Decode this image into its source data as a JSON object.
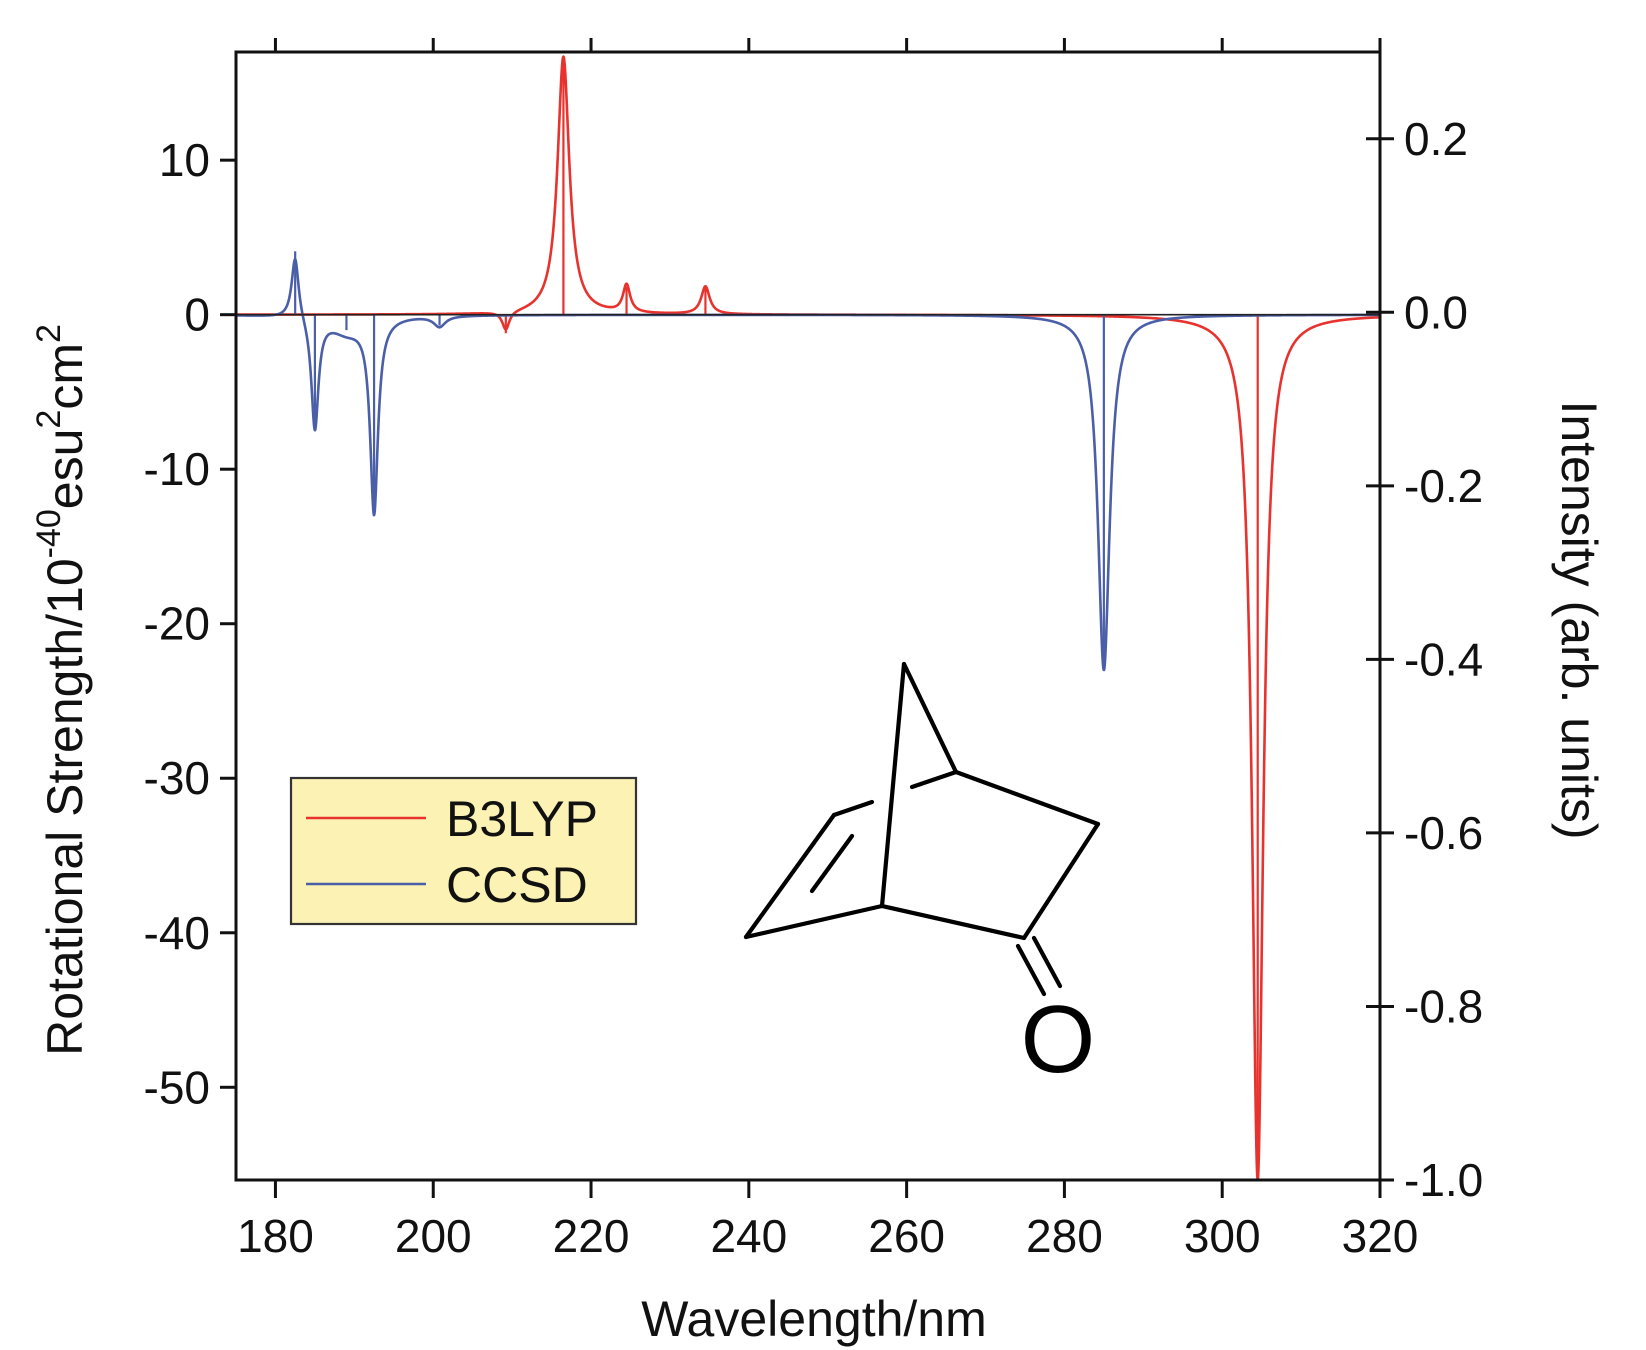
{
  "chart_data": {
    "type": "line",
    "title": "",
    "xlabel": "Wavelength/nm",
    "ylabel_left": {
      "main": "Rotational Strength/10",
      "exp1": "-40",
      "mid": "esu",
      "exp2": "2",
      "unit": "cm",
      "exp3": "2"
    },
    "ylabel_right": "Intensity (arb. units)",
    "xlim": [
      175,
      320
    ],
    "ylim_left": [
      -56,
      17
    ],
    "ylim_right": [
      -1.0,
      0.3
    ],
    "x_ticks": [
      180,
      200,
      220,
      240,
      260,
      280,
      300,
      320
    ],
    "x_tick_labels": [
      "180",
      "200",
      "220",
      "240",
      "260",
      "280",
      "300",
      "320"
    ],
    "y_left_ticks": [
      10,
      0,
      -10,
      -20,
      -30,
      -40,
      -50
    ],
    "y_left_tick_labels": [
      "10",
      "0",
      "-10",
      "-20",
      "-30",
      "-40",
      "-50"
    ],
    "y_right_ticks": [
      0.2,
      0.0,
      -0.2,
      -0.4,
      -0.6,
      -0.8,
      -1.0
    ],
    "y_right_tick_labels": [
      "0.2",
      "0.0",
      "-0.2",
      "-0.4",
      "-0.6",
      "-0.8",
      "-1.0"
    ],
    "grid": false,
    "legend_position": "middle-left",
    "legend_background": "#fbf2b4",
    "series": [
      {
        "name": "B3LYP",
        "color": "#e8322d",
        "axis": "left",
        "peaks": [
          {
            "x": 209.2,
            "strength": -1.2
          },
          {
            "x": 216.5,
            "strength": 16.7
          },
          {
            "x": 224.5,
            "strength": 1.8
          },
          {
            "x": 234.5,
            "strength": 1.8
          },
          {
            "x": 304.5,
            "strength": -56.0
          }
        ],
        "line_widths": [
          0.55,
          0.9,
          0.55,
          0.65,
          0.85
        ]
      },
      {
        "name": "CCSD",
        "color": "#4a5fa8",
        "axis": "left",
        "peaks": [
          {
            "x": 182.5,
            "strength": 4.1
          },
          {
            "x": 185.0,
            "strength": -7.3
          },
          {
            "x": 189.0,
            "strength": -1.0
          },
          {
            "x": 192.5,
            "strength": -12.6
          },
          {
            "x": 200.8,
            "strength": -0.7
          },
          {
            "x": 285.0,
            "strength": -23.0
          }
        ],
        "line_widths": [
          0.55,
          0.55,
          2.5,
          0.6,
          0.9,
          0.9
        ]
      }
    ],
    "annotation_molecule": {
      "atom_label": "O"
    }
  }
}
